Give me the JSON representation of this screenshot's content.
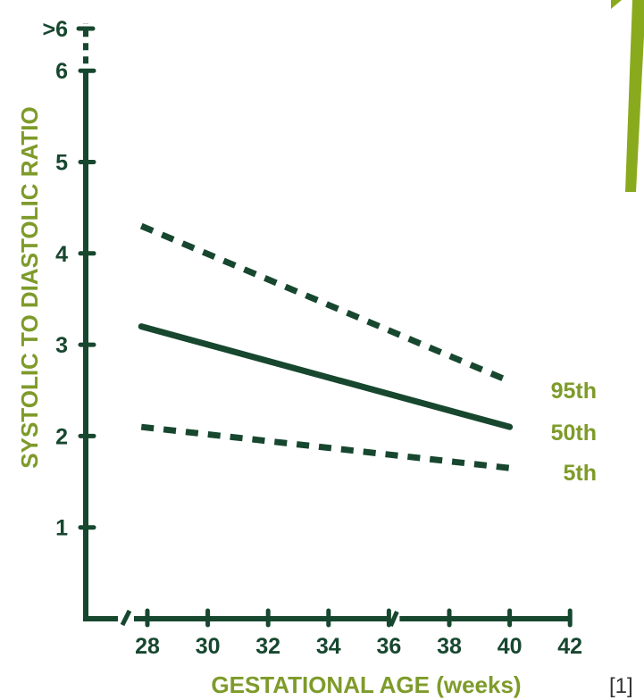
{
  "chart_data": {
    "type": "line",
    "xlabel": "GESTATIONAL AGE (weeks)",
    "ylabel": "SYSTOLIC TO DIASTOLIC RATIO",
    "x_ticks": [
      28,
      30,
      32,
      34,
      36,
      38,
      40,
      42
    ],
    "y_ticks": [
      1,
      2,
      3,
      4,
      5,
      6
    ],
    "y_top_label": ">6",
    "xlim": [
      26,
      42
    ],
    "ylim": [
      0,
      6.5
    ],
    "axis_breaks": [
      "x-axis between origin and 28",
      "x-axis near 36",
      "y-axis between 6 and >6"
    ],
    "series": [
      {
        "name": "95th",
        "style": "dashed",
        "x": [
          27.8,
          40
        ],
        "y": [
          4.3,
          2.6
        ]
      },
      {
        "name": "50th",
        "style": "solid",
        "x": [
          27.8,
          40
        ],
        "y": [
          3.2,
          2.1
        ]
      },
      {
        "name": "5th",
        "style": "dashed",
        "x": [
          27.8,
          40
        ],
        "y": [
          2.1,
          1.65
        ]
      }
    ],
    "reference_note": "[1]",
    "colors": {
      "axis": "#17472f",
      "labels": "#7e9b2a",
      "decoration": "#8aaa1e"
    }
  }
}
